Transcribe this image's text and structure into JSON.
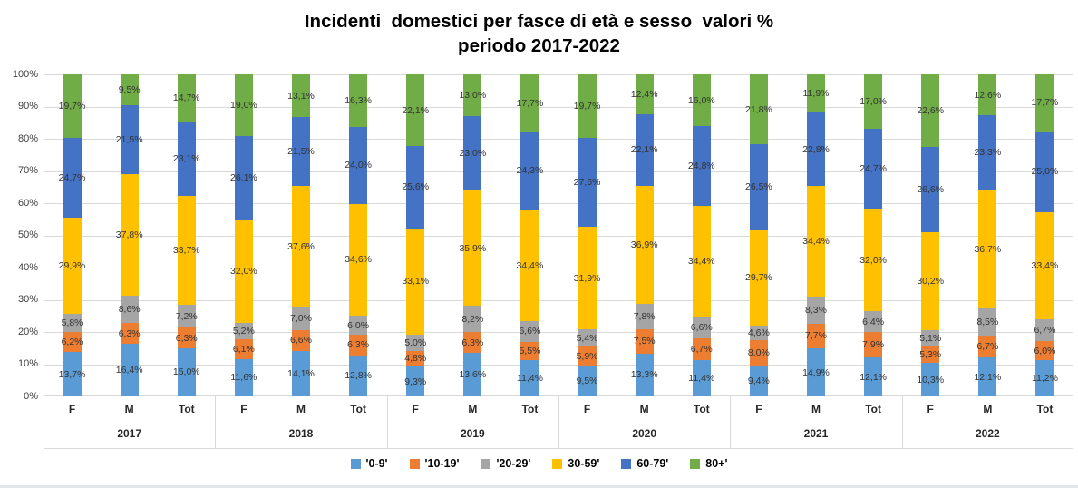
{
  "title": {
    "line1": "Incidenti  domestici per fasce di età e sesso  valori %",
    "line2": "periodo 2017-2022"
  },
  "y_axis": {
    "ticks": [
      "100%",
      "90%",
      "80%",
      "70%",
      "60%",
      "50%",
      "40%",
      "30%",
      "20%",
      "10%",
      "0%"
    ]
  },
  "x_axis": {
    "bar_labels": [
      "F",
      "M",
      "Tot"
    ],
    "years": [
      "2017",
      "2018",
      "2019",
      "2020",
      "2021",
      "2022"
    ]
  },
  "legend": {
    "position": "bottom",
    "items": [
      {
        "label": "'0-9'",
        "color": "#5B9BD5"
      },
      {
        "label": "'10-19'",
        "color": "#ED7D31"
      },
      {
        "label": "'20-29'",
        "color": "#A5A5A5"
      },
      {
        "label": "30-59'",
        "color": "#FFC000"
      },
      {
        "label": "60-79'",
        "color": "#4472C4"
      },
      {
        "label": "80+'",
        "color": "#70AD47"
      }
    ]
  },
  "colors": {
    "gridline": "#D9D9D9",
    "axis_line": "#D9D9D9",
    "data_label": "#333333",
    "tick_label": "#404040"
  },
  "chart_data": {
    "type": "bar",
    "stacked": true,
    "percent_stacked": true,
    "grid": true,
    "legend_position": "bottom",
    "title": "Incidenti domestici per fasce di età e sesso valori % periodo 2017-2022",
    "ylabel": "",
    "xlabel": "",
    "ylim": [
      0,
      100
    ],
    "y_tick_step": 10,
    "value_format": "decimal-comma-percent-1dp",
    "group_labels": [
      "2017",
      "2018",
      "2019",
      "2020",
      "2021",
      "2022"
    ],
    "categories": [
      "2017 F",
      "2017 M",
      "2017 Tot",
      "2018 F",
      "2018 M",
      "2018 Tot",
      "2019 F",
      "2019 M",
      "2019 Tot",
      "2020 F",
      "2020 M",
      "2020 Tot",
      "2021 F",
      "2021 M",
      "2021 Tot",
      "2022 F",
      "2022 M",
      "2022 Tot"
    ],
    "series": [
      {
        "name": "'0-9'",
        "color": "#5B9BD5",
        "values": [
          13.7,
          16.4,
          15.0,
          11.6,
          14.1,
          12.8,
          9.3,
          13.6,
          11.4,
          9.5,
          13.3,
          11.4,
          9.4,
          14.9,
          12.1,
          10.3,
          12.1,
          11.2
        ]
      },
      {
        "name": "'10-19'",
        "color": "#ED7D31",
        "values": [
          6.2,
          6.3,
          6.3,
          6.1,
          6.6,
          6.3,
          4.8,
          6.3,
          5.5,
          5.9,
          7.5,
          6.7,
          8.0,
          7.7,
          7.9,
          5.3,
          6.7,
          6.0
        ]
      },
      {
        "name": "'20-29'",
        "color": "#A5A5A5",
        "values": [
          5.8,
          8.6,
          7.2,
          5.2,
          7.0,
          6.0,
          5.0,
          8.2,
          6.6,
          5.4,
          7.8,
          6.6,
          4.6,
          8.3,
          6.4,
          5.1,
          8.5,
          6.7
        ]
      },
      {
        "name": "30-59'",
        "color": "#FFC000",
        "values": [
          29.9,
          37.8,
          33.7,
          32.0,
          37.6,
          34.6,
          33.1,
          35.9,
          34.4,
          31.9,
          36.9,
          34.4,
          29.7,
          34.4,
          32.0,
          30.2,
          36.7,
          33.4
        ]
      },
      {
        "name": "60-79'",
        "color": "#4472C4",
        "values": [
          24.7,
          21.5,
          23.1,
          26.1,
          21.5,
          24.0,
          25.6,
          23.0,
          24.3,
          27.6,
          22.1,
          24.8,
          26.5,
          22.8,
          24.7,
          26.6,
          23.3,
          25.0
        ]
      },
      {
        "name": "80+'",
        "color": "#70AD47",
        "values": [
          19.7,
          9.5,
          14.7,
          19.0,
          13.1,
          16.3,
          22.1,
          13.0,
          17.7,
          19.7,
          12.4,
          16.0,
          21.8,
          11.9,
          17.0,
          22.6,
          12.6,
          17.7
        ]
      }
    ]
  }
}
